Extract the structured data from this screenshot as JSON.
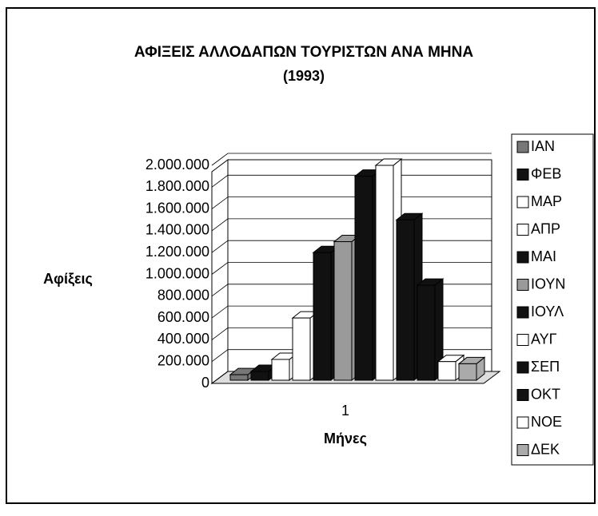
{
  "chart_data": {
    "type": "bar3d",
    "title": "ΑΦΙΞΕΙΣ ΑΛΛΟΔΑΠΩΝ ΤΟΥΡΙΣΤΩΝ ΑΝΑ ΜΗΝΑ",
    "subtitle": "(1993)",
    "y_label": "Αφίξεις",
    "x_label": "Μήνες",
    "categories": [
      "1"
    ],
    "series": [
      {
        "name": "ΙΑΝ",
        "color": "#777777",
        "values": [
          80000
        ]
      },
      {
        "name": "ΦΕΒ",
        "color": "#111111",
        "values": [
          110000
        ]
      },
      {
        "name": "ΜΑΡ",
        "color": "#ffffff",
        "values": [
          220000
        ]
      },
      {
        "name": "ΑΠΡ",
        "color": "#ffffff",
        "values": [
          600000
        ]
      },
      {
        "name": "ΜΑΙ",
        "color": "#111111",
        "values": [
          1200000
        ]
      },
      {
        "name": "ΙΟΥΝ",
        "color": "#9a9a9a",
        "values": [
          1300000
        ]
      },
      {
        "name": "ΙΟΥΛ",
        "color": "#111111",
        "values": [
          1900000
        ]
      },
      {
        "name": "ΑΥΓ",
        "color": "#ffffff",
        "values": [
          2000000
        ]
      },
      {
        "name": "ΣΕΠ",
        "color": "#111111",
        "values": [
          1500000
        ]
      },
      {
        "name": "ΟΚΤ",
        "color": "#111111",
        "values": [
          900000
        ]
      },
      {
        "name": "ΝΟΕ",
        "color": "#ffffff",
        "values": [
          200000
        ]
      },
      {
        "name": "ΔΕΚ",
        "color": "#aaaaaa",
        "values": [
          180000
        ]
      }
    ],
    "ylim": [
      0,
      2000000
    ],
    "yticks": [
      0,
      {
        "value": 200000,
        "label": "200.000"
      },
      {
        "value": 400000,
        "label": "400.000"
      },
      {
        "value": 600000,
        "label": "600.000"
      },
      {
        "value": 800000,
        "label": "800.000"
      },
      {
        "value": 1000000,
        "label": "1.000.000"
      },
      {
        "value": 1200000,
        "label": "1.200.000"
      },
      {
        "value": 1400000,
        "label": "1.400.000"
      },
      {
        "value": 1600000,
        "label": "1.600.000"
      },
      {
        "value": 1800000,
        "label": "1.800.000"
      },
      {
        "value": 2000000,
        "label": "2.000.000"
      }
    ],
    "grid": true,
    "legend": "right"
  }
}
